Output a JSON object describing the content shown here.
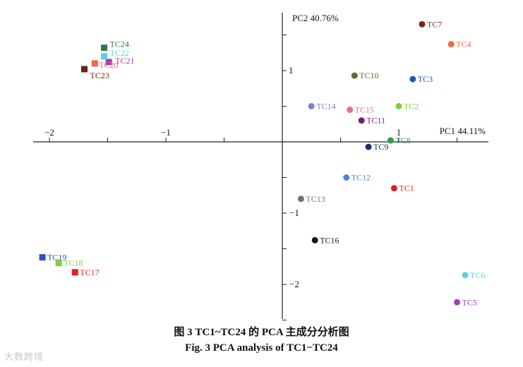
{
  "chart_data": {
    "type": "scatter",
    "xlabel": "PC1 44.11%",
    "ylabel": "PC2 40.76%",
    "xlim": [
      -2.1,
      1.75
    ],
    "ylim": [
      -2.45,
      1.75
    ],
    "x_ticks": [
      -2,
      -1,
      1
    ],
    "y_ticks": [
      1,
      -1,
      -2
    ],
    "grid": false,
    "points": [
      {
        "label": "TC1",
        "x": 0.96,
        "y": -0.65,
        "color": "#e02020",
        "marker": "circle"
      },
      {
        "label": "TC2",
        "x": 1.0,
        "y": 0.5,
        "color": "#7fcf3a",
        "marker": "circle"
      },
      {
        "label": "TC3",
        "x": 1.12,
        "y": 0.88,
        "color": "#2a55b0",
        "marker": "circle"
      },
      {
        "label": "TC4",
        "x": 1.45,
        "y": 1.37,
        "color": "#ee6a3f",
        "marker": "circle"
      },
      {
        "label": "TC5",
        "x": 1.5,
        "y": -2.25,
        "color": "#a040b8",
        "marker": "circle"
      },
      {
        "label": "TC6",
        "x": 1.57,
        "y": -1.87,
        "color": "#5bcfe0",
        "marker": "circle"
      },
      {
        "label": "TC7",
        "x": 1.2,
        "y": 1.65,
        "color": "#7a2618",
        "marker": "circle"
      },
      {
        "label": "TC8",
        "x": 0.93,
        "y": 0.02,
        "color": "#2e9a4a",
        "marker": "circle"
      },
      {
        "label": "TC9",
        "x": 0.74,
        "y": -0.07,
        "color": "#1e2f6e",
        "marker": "circle"
      },
      {
        "label": "TC10",
        "x": 0.62,
        "y": 0.93,
        "color": "#5b6f2e",
        "marker": "circle"
      },
      {
        "label": "TC11",
        "x": 0.68,
        "y": 0.3,
        "color": "#7a1a78",
        "marker": "circle"
      },
      {
        "label": "TC12",
        "x": 0.55,
        "y": -0.5,
        "color": "#4a86d0",
        "marker": "circle"
      },
      {
        "label": "TC13",
        "x": 0.16,
        "y": -0.8,
        "color": "#707070",
        "marker": "circle"
      },
      {
        "label": "TC14",
        "x": 0.25,
        "y": 0.5,
        "color": "#7a82c8",
        "marker": "circle"
      },
      {
        "label": "TC15",
        "x": 0.58,
        "y": 0.45,
        "color": "#e8708a",
        "marker": "circle"
      },
      {
        "label": "TC16",
        "x": 0.28,
        "y": -1.38,
        "color": "#161616",
        "marker": "circle"
      },
      {
        "label": "TC17",
        "x": -1.78,
        "y": -1.83,
        "color": "#e02020",
        "marker": "square"
      },
      {
        "label": "TC18",
        "x": -1.92,
        "y": -1.7,
        "color": "#7fcf3a",
        "marker": "square"
      },
      {
        "label": "TC19",
        "x": -2.06,
        "y": -1.62,
        "color": "#2a55b0",
        "marker": "square"
      },
      {
        "label": "TC20",
        "x": -1.61,
        "y": 1.1,
        "color": "#ee6a3f",
        "marker": "square"
      },
      {
        "label": "TC21",
        "x": -1.49,
        "y": 1.12,
        "color": "#a040b8",
        "marker": "square"
      },
      {
        "label": "TC22",
        "x": -1.53,
        "y": 1.2,
        "color": "#5bcfe0",
        "marker": "square"
      },
      {
        "label": "TC23",
        "x": -1.7,
        "y": 1.02,
        "color": "#6b2412",
        "marker": "square"
      },
      {
        "label": "TC24",
        "x": -1.53,
        "y": 1.32,
        "color": "#2e7a44",
        "marker": "square"
      }
    ]
  },
  "caption_cn": "图 3    TC1~TC24 的 PCA 主成分分析图",
  "caption_en": "Fig. 3    PCA analysis of TC1−TC24",
  "watermark": "大数跨境"
}
